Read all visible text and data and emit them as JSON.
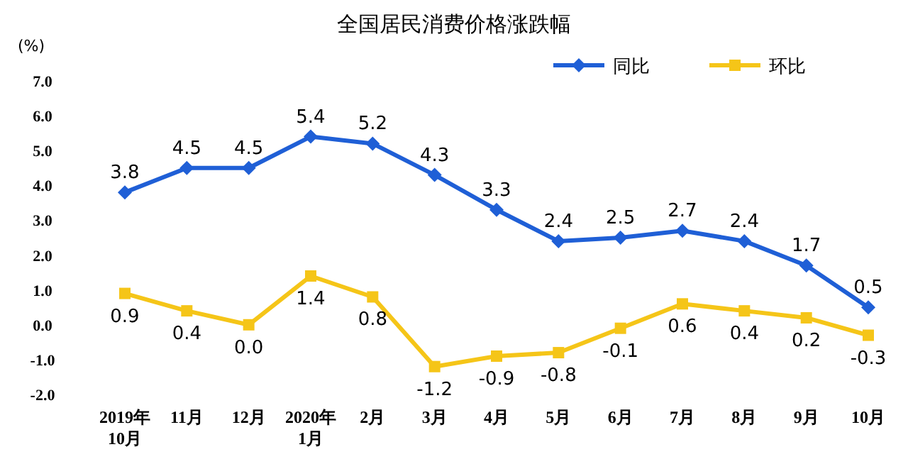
{
  "chart_data": {
    "type": "line",
    "title": "全国居民消费价格涨跌幅",
    "ylabel": "(%)",
    "categories": [
      "2019年\n10月",
      "11月",
      "12月",
      "2020年\n1月",
      "2月",
      "3月",
      "4月",
      "5月",
      "6月",
      "7月",
      "8月",
      "9月",
      "10月"
    ],
    "series": [
      {
        "name": "同比",
        "color": "#1f5fd6",
        "marker": "diamond",
        "values": [
          3.8,
          4.5,
          4.5,
          5.4,
          5.2,
          4.3,
          3.3,
          2.4,
          2.5,
          2.7,
          2.4,
          1.7,
          0.5
        ],
        "value_labels": [
          "3.8",
          "4.5",
          "4.5",
          "5.4",
          "5.2",
          "4.3",
          "3.3",
          "2.4",
          "2.5",
          "2.7",
          "2.4",
          "1.7",
          "0.5"
        ]
      },
      {
        "name": "环比",
        "color": "#f5c518",
        "marker": "square",
        "values": [
          0.9,
          0.4,
          0.0,
          1.4,
          0.8,
          -1.2,
          -0.9,
          -0.8,
          -0.1,
          0.6,
          0.4,
          0.2,
          -0.3
        ],
        "value_labels": [
          "0.9",
          "0.4",
          "0.0",
          "1.4",
          "0.8",
          "-1.2",
          "-0.9",
          "-0.8",
          "-0.1",
          "0.6",
          "0.4",
          "0.2",
          "-0.3"
        ]
      }
    ],
    "ylim": [
      -2,
      7
    ],
    "yticks": [
      {
        "value": -2,
        "label": "-2.0"
      },
      {
        "value": -1,
        "label": "-1.0"
      },
      {
        "value": 0,
        "label": "0.0"
      },
      {
        "value": 1,
        "label": "1.0"
      },
      {
        "value": 2,
        "label": "2.0"
      },
      {
        "value": 3,
        "label": "3.0"
      },
      {
        "value": 4,
        "label": "4.0"
      },
      {
        "value": 5,
        "label": "5.0"
      },
      {
        "value": 6,
        "label": "6.0"
      },
      {
        "value": 7,
        "label": "7.0"
      }
    ],
    "legend": "top right",
    "line_style": "solid",
    "grid": false
  }
}
